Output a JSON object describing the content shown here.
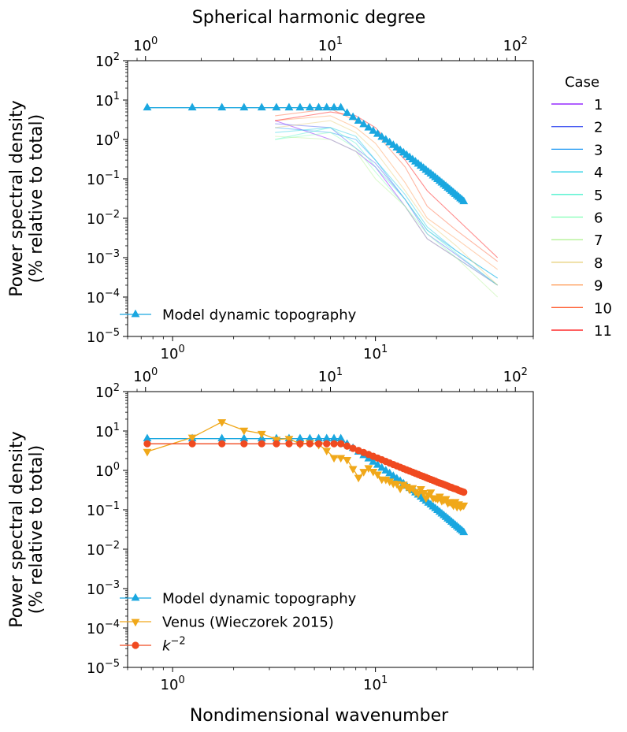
{
  "figure": {
    "top_axis_label": "Spherical harmonic degree",
    "bottom_axis_label": "Nondimensional wavenumber",
    "ylabel_line1": "Power spectral density",
    "ylabel_line2": "(% relative to total)"
  },
  "chart_data": [
    {
      "type": "line",
      "panel": "top",
      "xscale": "log",
      "yscale": "log",
      "xlim": [
        0.6,
        60
      ],
      "ylim": [
        1e-05,
        100
      ],
      "secondary_x_label": "Spherical harmonic degree",
      "secondary_x_ticks": [
        "10^0",
        "10^1",
        "10^2"
      ],
      "x_ticks": [
        "10^0",
        "10^1"
      ],
      "y_ticks": [
        "10^-5",
        "10^-4",
        "10^-3",
        "10^-2",
        "10^-1",
        "10^0",
        "10^1",
        "10^2"
      ],
      "ylabel": "Power spectral density (% relative to total)",
      "legend_title": "Case",
      "legend_position": "outside right",
      "case_series": [
        {
          "name": "1",
          "color": "#8000ff",
          "x": [
            3.2,
            6,
            8,
            10,
            14,
            18,
            25,
            40
          ],
          "y": [
            3,
            1,
            0.5,
            0.2,
            0.02,
            0.003,
            0.001,
            0.0002
          ]
        },
        {
          "name": "2",
          "color": "#4a5df2",
          "x": [
            3.2,
            6,
            8,
            10,
            14,
            18,
            25,
            40
          ],
          "y": [
            2.5,
            2,
            0.6,
            0.25,
            0.03,
            0.004,
            0.0012,
            0.0002
          ]
        },
        {
          "name": "3",
          "color": "#1996f3",
          "x": [
            3.2,
            6,
            8,
            10,
            14,
            18,
            25,
            40
          ],
          "y": [
            2,
            1.5,
            1,
            0.3,
            0.03,
            0.005,
            0.0015,
            0.0003
          ]
        },
        {
          "name": "4",
          "color": "#18cde3",
          "x": [
            3.2,
            6,
            8,
            10,
            14,
            18,
            25,
            40
          ],
          "y": [
            1.5,
            2,
            1.2,
            0.3,
            0.04,
            0.006,
            0.0015,
            0.0003
          ]
        },
        {
          "name": "5",
          "color": "#4cf2ce",
          "x": [
            3.2,
            6,
            8,
            10,
            14,
            18,
            25,
            40
          ],
          "y": [
            1,
            2,
            0.8,
            0.2,
            0.03,
            0.005,
            0.0013,
            0.0002
          ]
        },
        {
          "name": "6",
          "color": "#80ffb4",
          "x": [
            3.2,
            6,
            8,
            10,
            14,
            18,
            25,
            40
          ],
          "y": [
            1,
            1.5,
            0.6,
            0.15,
            0.02,
            0.004,
            0.001,
            0.0002
          ]
        },
        {
          "name": "7",
          "color": "#b3f294",
          "x": [
            3.2,
            6,
            8,
            10,
            14,
            18,
            25,
            40
          ],
          "y": [
            1.2,
            1,
            0.5,
            0.1,
            0.02,
            0.003,
            0.001,
            0.0001
          ]
        },
        {
          "name": "8",
          "color": "#e6cd73",
          "x": [
            3.2,
            6,
            8,
            10,
            14,
            18,
            25,
            40
          ],
          "y": [
            2,
            3,
            1.5,
            0.5,
            0.05,
            0.008,
            0.002,
            0.0002
          ]
        },
        {
          "name": "9",
          "color": "#ff964f",
          "x": [
            3.2,
            6,
            8,
            10,
            14,
            18,
            25,
            40
          ],
          "y": [
            3,
            4,
            2,
            0.8,
            0.08,
            0.01,
            0.003,
            0.0005
          ]
        },
        {
          "name": "10",
          "color": "#ff5d30",
          "x": [
            3.2,
            6,
            8,
            10,
            14,
            18,
            25,
            40
          ],
          "y": [
            4,
            6,
            3,
            1.5,
            0.2,
            0.02,
            0.005,
            0.0008
          ]
        },
        {
          "name": "11",
          "color": "#ff0000",
          "x": [
            3.2,
            6,
            8,
            10,
            14,
            18,
            25,
            40
          ],
          "y": [
            3,
            5,
            4,
            2,
            0.3,
            0.05,
            0.01,
            0.001
          ]
        }
      ],
      "series": [
        {
          "name": "Model dynamic topography",
          "color": "#1aa7e0",
          "marker": "triangle-up",
          "x": [
            0.75,
            1.25,
            1.75,
            2.25,
            2.75,
            3.25,
            3.75,
            4.25,
            4.75,
            5.25,
            5.75,
            6.25,
            6.75,
            7.25,
            7.75,
            8.25,
            8.75,
            9.25,
            9.75,
            10.25,
            10.75,
            11.25,
            11.75,
            12.25,
            12.75,
            13.25,
            13.75,
            14.25,
            14.75,
            15.25,
            15.75,
            16.25,
            16.75,
            17.25,
            17.75,
            18.25,
            18.75,
            19.25,
            19.75,
            20.25,
            20.75,
            21.25,
            21.75,
            22.25,
            22.75,
            23.25,
            23.75,
            24.25,
            24.75,
            25.25,
            25.75,
            26.25,
            26.75,
            27.25
          ],
          "y": [
            6.4,
            6.4,
            6.4,
            6.4,
            6.4,
            6.4,
            6.4,
            6.4,
            6.4,
            6.4,
            6.4,
            6.4,
            6.4,
            4.65,
            3.66,
            2.94,
            2.4,
            1.97,
            1.63,
            1.37,
            1.15,
            0.978,
            0.833,
            0.714,
            0.614,
            0.531,
            0.461,
            0.401,
            0.351,
            0.308,
            0.271,
            0.239,
            0.212,
            0.188,
            0.167,
            0.149,
            0.134,
            0.12,
            0.108,
            0.0971,
            0.0876,
            0.0792,
            0.0717,
            0.065,
            0.0591,
            0.0538,
            0.049,
            0.0447,
            0.0409,
            0.0374,
            0.0343,
            0.0315,
            0.029,
            0.0267
          ]
        }
      ]
    },
    {
      "type": "line",
      "panel": "bottom",
      "xscale": "log",
      "yscale": "log",
      "xlim": [
        0.6,
        60
      ],
      "ylim": [
        1e-05,
        100
      ],
      "secondary_x_ticks": [
        "10^0",
        "10^1",
        "10^2"
      ],
      "x_ticks": [
        "10^0",
        "10^1"
      ],
      "y_ticks": [
        "10^-5",
        "10^-4",
        "10^-3",
        "10^-2",
        "10^-1",
        "10^0",
        "10^1",
        "10^2"
      ],
      "xlabel": "Nondimensional wavenumber",
      "ylabel": "Power spectral density (% relative to total)",
      "legend_position": "lower-left",
      "series": [
        {
          "name": "Model dynamic topography",
          "color": "#1aa7e0",
          "marker": "triangle-up",
          "x": [
            0.75,
            1.25,
            1.75,
            2.25,
            2.75,
            3.25,
            3.75,
            4.25,
            4.75,
            5.25,
            5.75,
            6.25,
            6.75,
            7.25,
            7.75,
            8.25,
            8.75,
            9.25,
            9.75,
            10.25,
            10.75,
            11.25,
            11.75,
            12.25,
            12.75,
            13.25,
            13.75,
            14.25,
            14.75,
            15.25,
            15.75,
            16.25,
            16.75,
            17.25,
            17.75,
            18.25,
            18.75,
            19.25,
            19.75,
            20.25,
            20.75,
            21.25,
            21.75,
            22.25,
            22.75,
            23.25,
            23.75,
            24.25,
            24.75,
            25.25,
            25.75,
            26.25,
            26.75,
            27.25
          ],
          "y": [
            6.4,
            6.4,
            6.4,
            6.4,
            6.4,
            6.4,
            6.4,
            6.4,
            6.4,
            6.4,
            6.4,
            6.4,
            6.4,
            4.65,
            3.66,
            2.94,
            2.4,
            1.97,
            1.63,
            1.37,
            1.15,
            0.978,
            0.833,
            0.714,
            0.614,
            0.531,
            0.461,
            0.401,
            0.351,
            0.308,
            0.271,
            0.239,
            0.212,
            0.188,
            0.167,
            0.149,
            0.134,
            0.12,
            0.108,
            0.0971,
            0.0876,
            0.0792,
            0.0717,
            0.065,
            0.0591,
            0.0538,
            0.049,
            0.0447,
            0.0409,
            0.0374,
            0.0343,
            0.0315,
            0.029,
            0.0267
          ]
        },
        {
          "name": "Venus (Wieczorek 2015)",
          "color": "#f0a81a",
          "marker": "triangle-down",
          "x": [
            0.75,
            1.25,
            1.75,
            2.25,
            2.75,
            3.25,
            3.75,
            4.25,
            4.75,
            5.25,
            5.75,
            6.25,
            6.75,
            7.25,
            7.75,
            8.25,
            8.75,
            9.25,
            9.75,
            10.25,
            10.75,
            11.25,
            11.75,
            12.25,
            12.75,
            13.25,
            13.75,
            14.25,
            14.75,
            15.25,
            15.75,
            16.25,
            16.75,
            17.25,
            17.75,
            18.25,
            18.75,
            19.25,
            19.75,
            20.25,
            20.75,
            21.25,
            21.75,
            22.25,
            22.75,
            23.25,
            23.75,
            24.25,
            24.75,
            25.25,
            25.75,
            26.25,
            26.75,
            27.25
          ],
          "y": [
            3.0,
            6.9,
            17.0,
            10.4,
            8.6,
            6.1,
            6.4,
            4.7,
            5.0,
            4.5,
            3.2,
            2.1,
            2.1,
            1.87,
            1.1,
            0.66,
            0.93,
            1.16,
            0.94,
            0.8,
            0.6,
            0.59,
            0.53,
            0.47,
            0.46,
            0.35,
            0.44,
            0.39,
            0.33,
            0.36,
            0.29,
            0.26,
            0.34,
            0.27,
            0.2,
            0.24,
            0.28,
            0.2,
            0.2,
            0.19,
            0.22,
            0.17,
            0.18,
            0.19,
            0.15,
            0.16,
            0.15,
            0.13,
            0.16,
            0.12,
            0.14,
            0.12,
            0.13,
            0.13
          ]
        },
        {
          "name": "k^-2",
          "color": "#f04a20",
          "marker": "circle",
          "x": [
            0.75,
            1.25,
            1.75,
            2.25,
            2.75,
            3.25,
            3.75,
            4.25,
            4.75,
            5.25,
            5.75,
            6.25,
            6.75,
            7.25,
            7.75,
            8.25,
            8.75,
            9.25,
            9.75,
            10.25,
            10.75,
            11.25,
            11.75,
            12.25,
            12.75,
            13.25,
            13.75,
            14.25,
            14.75,
            15.25,
            15.75,
            16.25,
            16.75,
            17.25,
            17.75,
            18.25,
            18.75,
            19.25,
            19.75,
            20.25,
            20.75,
            21.25,
            21.75,
            22.25,
            22.75,
            23.25,
            23.75,
            24.25,
            24.75,
            25.25,
            25.75,
            26.25,
            26.75,
            27.25
          ],
          "y": [
            4.75,
            4.75,
            4.75,
            4.75,
            4.75,
            4.75,
            4.75,
            4.75,
            4.75,
            4.75,
            4.75,
            4.75,
            4.75,
            4.14,
            3.63,
            3.2,
            2.84,
            2.54,
            2.28,
            2.06,
            1.86,
            1.69,
            1.54,
            1.41,
            1.3,
            1.2,
            1.11,
            1.03,
            0.96,
            0.9,
            0.84,
            0.79,
            0.74,
            0.7,
            0.66,
            0.62,
            0.59,
            0.56,
            0.53,
            0.5,
            0.48,
            0.46,
            0.44,
            0.42,
            0.4,
            0.38,
            0.37,
            0.35,
            0.34,
            0.33,
            0.31,
            0.3,
            0.29,
            0.28
          ]
        }
      ]
    }
  ]
}
